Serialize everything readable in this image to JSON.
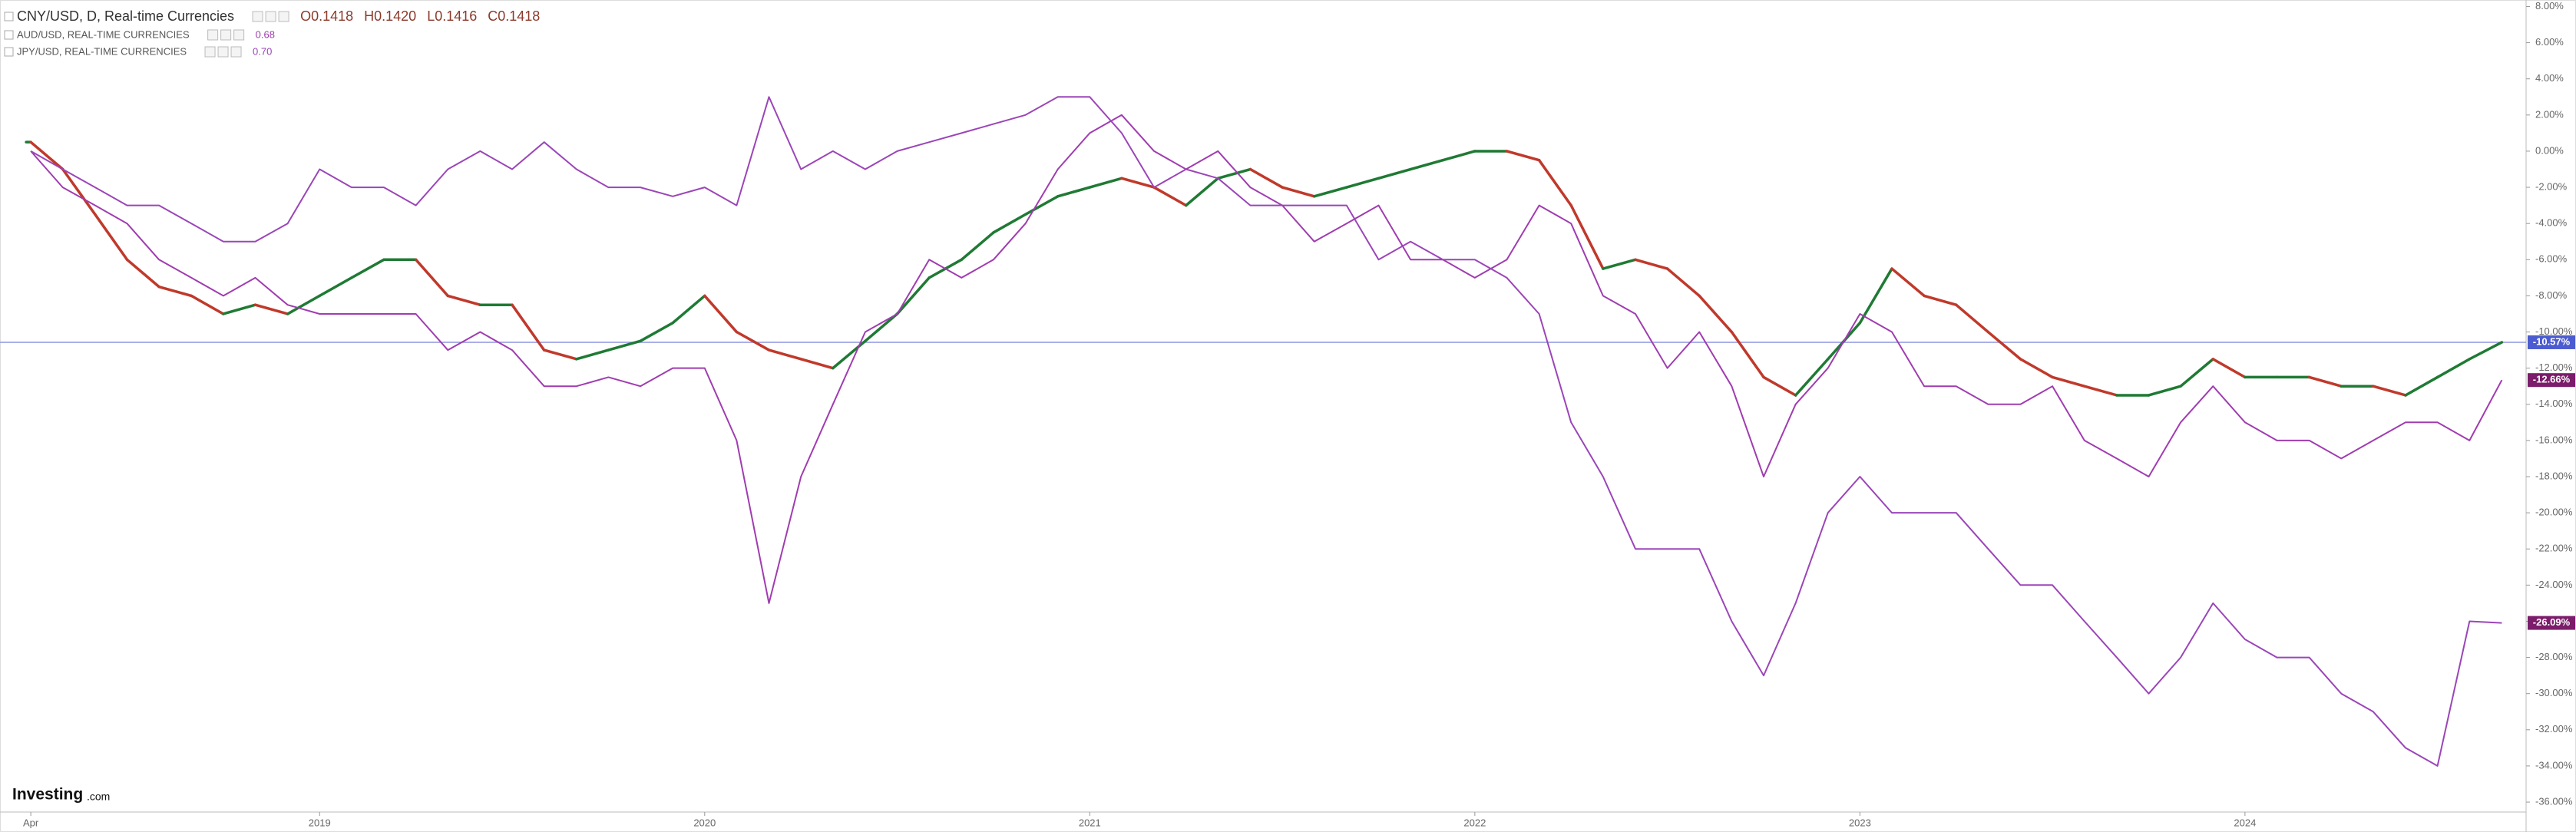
{
  "chart_data": {
    "type": "line",
    "logo": {
      "name": "Investing",
      "suffix": ".com"
    },
    "x": [
      2018.25,
      2018.333,
      2018.417,
      2018.5,
      2018.583,
      2018.667,
      2018.75,
      2018.833,
      2018.917,
      2019,
      2019.083,
      2019.167,
      2019.25,
      2019.333,
      2019.417,
      2019.5,
      2019.583,
      2019.667,
      2019.75,
      2019.833,
      2019.917,
      2020,
      2020.083,
      2020.167,
      2020.25,
      2020.333,
      2020.417,
      2020.5,
      2020.583,
      2020.667,
      2020.75,
      2020.833,
      2020.917,
      2021,
      2021.083,
      2021.167,
      2021.25,
      2021.333,
      2021.417,
      2021.5,
      2021.583,
      2021.667,
      2021.75,
      2021.833,
      2021.917,
      2022,
      2022.083,
      2022.167,
      2022.25,
      2022.333,
      2022.417,
      2022.5,
      2022.583,
      2022.667,
      2022.75,
      2022.833,
      2022.917,
      2023,
      2023.083,
      2023.167,
      2023.25,
      2023.333,
      2023.417,
      2023.5,
      2023.583,
      2023.667,
      2023.75,
      2023.833,
      2023.917,
      2024,
      2024.083,
      2024.167,
      2024.25,
      2024.333,
      2024.417,
      2024.5,
      2024.583,
      2024.667
    ],
    "series": [
      {
        "name": "CNY/USD, D, Real-time Currencies",
        "header_values": [
          "O0.1418",
          "H0.1420",
          "L0.1416",
          "C0.1418"
        ],
        "up_color": "#1f7a34",
        "down_color": "#c0392b",
        "values": [
          0.5,
          -1,
          -3.5,
          -6,
          -7.5,
          -8,
          -9,
          -8.5,
          -9,
          -8,
          -7,
          -6,
          -6,
          -8,
          -8.5,
          -8.5,
          -11,
          -11.5,
          -11,
          -10.5,
          -9.5,
          -8,
          -10,
          -11,
          -11.5,
          -12,
          -10.5,
          -9,
          -7,
          -6,
          -4.5,
          -3.5,
          -2.5,
          -2,
          -1.5,
          -2,
          -3,
          -1.5,
          -1,
          -2,
          -2.5,
          -2,
          -1.5,
          -1,
          -0.5,
          0,
          0,
          -0.5,
          -3,
          -6.5,
          -6,
          -6.5,
          -8,
          -10,
          -12.5,
          -13.5,
          -11.5,
          -9.5,
          -6.5,
          -8,
          -8.5,
          -10,
          -11.5,
          -12.5,
          -13,
          -13.5,
          -13.5,
          -13,
          -11.5,
          -12.5,
          -12.5,
          -12.5,
          -13,
          -13,
          -13.5,
          -12.5,
          -11.5,
          -10.57
        ]
      },
      {
        "name": "AUD/USD, REAL-TIME CURRENCIES",
        "header_values": [
          "0.68"
        ],
        "color": "#a03cb0",
        "values": [
          0,
          -2,
          -3,
          -4,
          -6,
          -7,
          -8,
          -7,
          -8.5,
          -9,
          -9,
          -9,
          -9,
          -11,
          -10,
          -11,
          -13,
          -13,
          -12.5,
          -13,
          -12,
          -12,
          -16,
          -25,
          -18,
          -14,
          -10,
          -9,
          -6,
          -7,
          -6,
          -4,
          -1,
          1,
          2,
          0,
          -1,
          0,
          -2,
          -3,
          -5,
          -4,
          -3,
          -6,
          -6,
          -7,
          -6,
          -3,
          -4,
          -8,
          -9,
          -12,
          -10,
          -13,
          -18,
          -14,
          -12,
          -9,
          -10,
          -13,
          -13,
          -14,
          -14,
          -13,
          -16,
          -17,
          -18,
          -15,
          -13,
          -15,
          -16,
          -16,
          -17,
          -16,
          -15,
          -15,
          -16,
          -12.66
        ]
      },
      {
        "name": "JPY/USD, REAL-TIME CURRENCIES",
        "header_values": [
          "0.70"
        ],
        "color": "#9b45b8",
        "values": [
          0,
          -1,
          -2,
          -3,
          -3,
          -4,
          -5,
          -5,
          -4,
          -1,
          -2,
          -2,
          -3,
          -1,
          0,
          -1,
          0.5,
          -1,
          -2,
          -2,
          -2.5,
          -2,
          -3,
          3,
          -1,
          0,
          -1,
          0,
          0.5,
          1,
          1.5,
          2,
          3,
          3,
          1,
          -2,
          -1,
          -1.5,
          -3,
          -3,
          -3,
          -3,
          -6,
          -5,
          -6,
          -6,
          -7,
          -9,
          -15,
          -18,
          -22,
          -22,
          -22,
          -26,
          -29,
          -25,
          -20,
          -18,
          -20,
          -20,
          -20,
          -22,
          -24,
          -24,
          -26,
          -28,
          -30,
          -28,
          -25,
          -27,
          -28,
          -28,
          -30,
          -31,
          -33,
          -34,
          -26,
          -26.09
        ]
      }
    ],
    "badges": [
      {
        "value": -10.57,
        "label": "-10.57%",
        "color": "#4b5bd0"
      },
      {
        "value": -12.66,
        "label": "-12.66%",
        "color": "#7b1d6a"
      },
      {
        "value": -26.09,
        "label": "-26.09%",
        "color": "#7b1d6a"
      }
    ],
    "price_line_color": "#8e96e0",
    "xlim": [
      2018.17,
      2024.73
    ],
    "xticks": [
      {
        "value": 2018.25,
        "label": "Apr"
      },
      2019,
      2020,
      2021,
      2022,
      2023,
      2024
    ],
    "ylim": [
      -36.55,
      8.36
    ],
    "yticks": [
      {
        "value": 8,
        "label": "8.00%"
      },
      {
        "value": 6,
        "label": "6.00%"
      },
      {
        "value": 4,
        "label": "4.00%"
      },
      {
        "value": 2,
        "label": "2.00%"
      },
      {
        "value": 0,
        "label": "0.00%"
      },
      {
        "value": -2,
        "label": "-2.00%"
      },
      {
        "value": -4,
        "label": "-4.00%"
      },
      {
        "value": -6,
        "label": "-6.00%"
      },
      {
        "value": -8,
        "label": "-8.00%"
      },
      {
        "value": -10,
        "label": "-10.00%"
      },
      {
        "value": -12,
        "label": "-12.00%"
      },
      {
        "value": -14,
        "label": "-14.00%"
      },
      {
        "value": -16,
        "label": "-16.00%"
      },
      {
        "value": -18,
        "label": "-18.00%"
      },
      {
        "value": -20,
        "label": "-20.00%"
      },
      {
        "value": -22,
        "label": "-22.00%"
      },
      {
        "value": -24,
        "label": "-24.00%"
      },
      {
        "value": -26,
        "label": "-26.00%"
      },
      {
        "value": -28,
        "label": "-28.00%"
      },
      {
        "value": -30,
        "label": "-30.00%"
      },
      {
        "value": -32,
        "label": "-32.00%"
      },
      {
        "value": -34,
        "label": "-34.00%"
      },
      {
        "value": -36,
        "label": "-36.00%"
      }
    ]
  }
}
